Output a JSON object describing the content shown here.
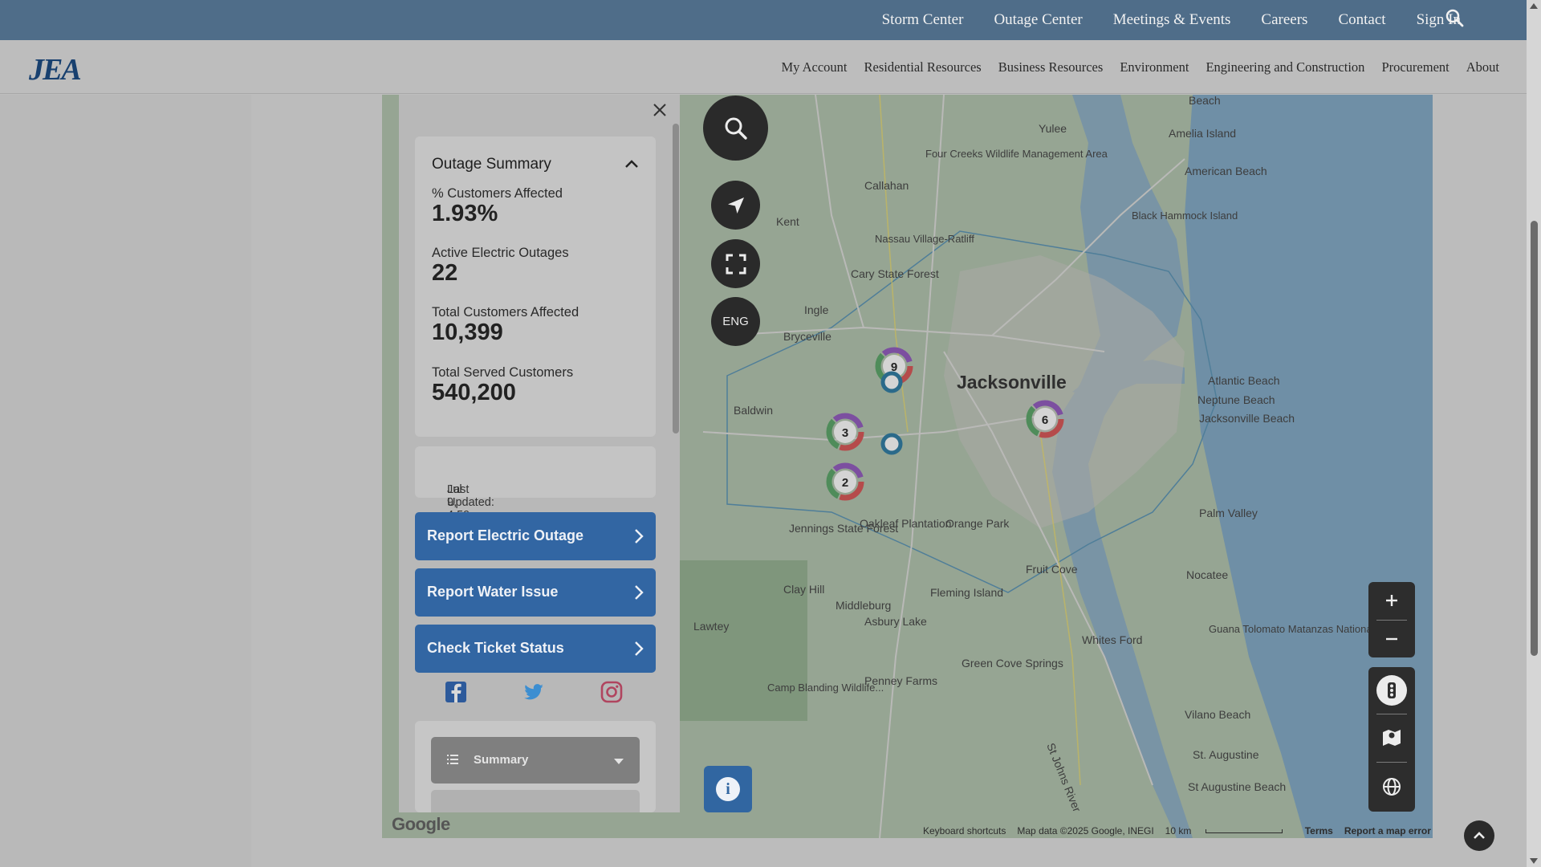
{
  "topnav": {
    "items": [
      "Storm Center",
      "Outage Center",
      "Meetings & Events",
      "Careers",
      "Contact",
      "Sign In"
    ]
  },
  "logo": "JEA",
  "mainnav": {
    "items": [
      "My Account",
      "Residential Resources",
      "Business Resources",
      "Environment",
      "Engineering and Construction",
      "Procurement",
      "About"
    ]
  },
  "summary": {
    "title": "Outage Summary",
    "stats": [
      {
        "label": "% Customers Affected",
        "value": "1.93%"
      },
      {
        "label": "Active Electric Outages",
        "value": "22"
      },
      {
        "label": "Total Customers Affected",
        "value": "10,399"
      },
      {
        "label": "Total Served Customers",
        "value": "540,200"
      }
    ],
    "last_updated_label": "Last Updated:",
    "last_updated_value": "Jul 9, 4:59 PM"
  },
  "actions": [
    "Report Electric Outage",
    "Report Water Issue",
    "Check Ticket Status"
  ],
  "dropdown": {
    "selected": "Summary"
  },
  "map_controls": {
    "language": "ENG"
  },
  "clusters": [
    {
      "count": "9"
    },
    {
      "count": "3"
    },
    {
      "count": "6"
    },
    {
      "count": "2"
    }
  ],
  "map_labels": {
    "cities": [
      "Jacksonville",
      "Callahan",
      "Yulee",
      "Baldwin",
      "Bryceville",
      "Ingle",
      "Kent",
      "Orange Park",
      "Fleming Island",
      "Middleburg",
      "Clay Hill",
      "Lawtey",
      "Penney Farms",
      "Fruit Cove",
      "Whites Ford",
      "Nocatee",
      "Palm Valley",
      "Atlantic Beach",
      "Neptune Beach",
      "Jacksonville Beach",
      "Oakleaf Plantation",
      "Jennings State Forest",
      "Cary State Forest",
      "Four Creeks Wildlife Management Area",
      "Nassau Village-Ratliff",
      "Amelia Island",
      "American Beach",
      "Black Hammock Island",
      "Asbury Lake",
      "Green Cove Springs",
      "Camp Blanding Wildlife...",
      "St. Augustine",
      "St Augustine Beach",
      "Guana Tolomato Matanzas National...",
      "Vilano Beach",
      "St Johns River",
      "Beach"
    ]
  },
  "map_footer": {
    "shortcuts": "Keyboard shortcuts",
    "mapdata": "Map data ©2025 Google, INEGI",
    "scale": "10 km",
    "terms": "Terms",
    "report": "Report a map error"
  },
  "google_mark": "Google",
  "colors": {
    "topbar": "#4f6d89",
    "action_button": "#3266a3",
    "logo": "#18406f"
  },
  "icons": [
    "search-icon",
    "close-icon",
    "chevron-up-icon",
    "chevron-right-icon",
    "facebook-icon",
    "twitter-icon",
    "instagram-icon",
    "list-icon",
    "locate-icon",
    "fullscreen-icon",
    "info-icon",
    "plus-icon",
    "minus-icon",
    "traffic-icon",
    "map-icon",
    "globe-icon",
    "chevron-up-icon"
  ]
}
